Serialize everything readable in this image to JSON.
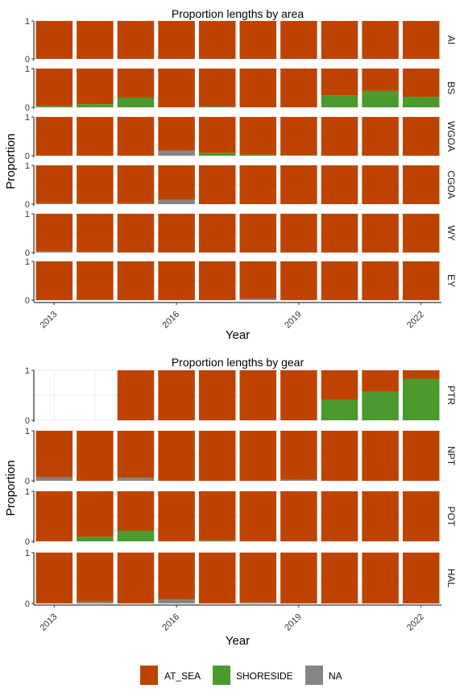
{
  "colors": {
    "AT_SEA": "#BF4300",
    "SHORESIDE": "#4A9A2E",
    "NA": "#858585"
  },
  "legend": {
    "entries": [
      "AT_SEA",
      "SHORESIDE",
      "NA"
    ],
    "placement": "bottom"
  },
  "chart_data": [
    {
      "type": "bar",
      "stacked": true,
      "title": "Proportion lengths by area",
      "xlabel": "Year",
      "ylabel": "Proportion",
      "x": [
        2013,
        2014,
        2015,
        2016,
        2017,
        2018,
        2019,
        2020,
        2021,
        2022
      ],
      "x_ticks": [
        2013,
        2016,
        2019,
        2022
      ],
      "y_ticks": [
        0,
        1
      ],
      "ylim": [
        0,
        1
      ],
      "stack_order": [
        "NA",
        "SHORESIDE",
        "AT_SEA"
      ],
      "facets": [
        {
          "label": "AI",
          "NA": [
            0,
            0,
            0,
            0,
            0,
            0,
            0,
            0,
            0,
            0
          ],
          "SHORESIDE": [
            0,
            0,
            0,
            0,
            0,
            0,
            0,
            0,
            0,
            0
          ],
          "AT_SEA": [
            1,
            1,
            1,
            1,
            1,
            1,
            1,
            1,
            1,
            1
          ]
        },
        {
          "label": "BS",
          "NA": [
            0,
            0,
            0,
            0,
            0,
            0,
            0,
            0,
            0,
            0
          ],
          "SHORESIDE": [
            0.04,
            0.08,
            0.25,
            0,
            0.02,
            0,
            0,
            0.31,
            0.42,
            0.27
          ],
          "AT_SEA": [
            0.96,
            0.92,
            0.75,
            1,
            0.98,
            1,
            1,
            0.69,
            0.58,
            0.73
          ]
        },
        {
          "label": "WGOA",
          "NA": [
            0,
            0,
            0,
            0.13,
            0,
            0,
            0,
            0,
            0,
            0
          ],
          "SHORESIDE": [
            0,
            0,
            0,
            0,
            0.07,
            0.03,
            0.02,
            0,
            0,
            0
          ],
          "AT_SEA": [
            1,
            1,
            1,
            0.87,
            0.93,
            0.97,
            0.98,
            1,
            1,
            1
          ]
        },
        {
          "label": "CGOA",
          "NA": [
            0.02,
            0.02,
            0.02,
            0.11,
            0,
            0,
            0,
            0,
            0,
            0
          ],
          "SHORESIDE": [
            0,
            0,
            0,
            0,
            0,
            0,
            0,
            0,
            0,
            0
          ],
          "AT_SEA": [
            0.98,
            0.98,
            0.98,
            0.89,
            1,
            1,
            1,
            1,
            1,
            1
          ]
        },
        {
          "label": "WY",
          "NA": [
            0.03,
            0.02,
            0,
            0,
            0,
            0,
            0,
            0,
            0,
            0
          ],
          "SHORESIDE": [
            0,
            0,
            0,
            0,
            0,
            0,
            0,
            0,
            0,
            0
          ],
          "AT_SEA": [
            0.97,
            0.98,
            1,
            1,
            1,
            1,
            1,
            1,
            1,
            1
          ]
        },
        {
          "label": "EY",
          "NA": [
            0,
            0.01,
            0,
            0,
            0,
            0.04,
            0,
            0,
            0,
            0
          ],
          "SHORESIDE": [
            0,
            0,
            0,
            0,
            0,
            0,
            0,
            0,
            0,
            0
          ],
          "AT_SEA": [
            1,
            0.99,
            1,
            1,
            1,
            0.96,
            1,
            1,
            1,
            1
          ]
        }
      ]
    },
    {
      "type": "bar",
      "stacked": true,
      "title": "Proportion lengths by gear",
      "xlabel": "Year",
      "ylabel": "Proportion",
      "x": [
        2013,
        2014,
        2015,
        2016,
        2017,
        2018,
        2019,
        2020,
        2021,
        2022
      ],
      "x_ticks": [
        2013,
        2016,
        2019,
        2022
      ],
      "y_ticks": [
        0,
        1
      ],
      "ylim": [
        0,
        1
      ],
      "stack_order": [
        "NA",
        "SHORESIDE",
        "AT_SEA"
      ],
      "facets": [
        {
          "label": "PTR",
          "NA": [
            null,
            null,
            0,
            0,
            0,
            0,
            0,
            0,
            0,
            0
          ],
          "SHORESIDE": [
            null,
            null,
            0,
            0,
            0,
            0,
            0,
            0.41,
            0.57,
            0.83
          ],
          "AT_SEA": [
            null,
            null,
            1,
            1,
            1,
            1,
            1,
            0.59,
            0.43,
            0.17
          ]
        },
        {
          "label": "NPT",
          "NA": [
            0.07,
            0,
            0.06,
            0,
            0,
            0,
            0.02,
            0,
            0,
            0
          ],
          "SHORESIDE": [
            0,
            0,
            0,
            0,
            0,
            0,
            0,
            0,
            0,
            0
          ],
          "AT_SEA": [
            0.93,
            1,
            0.94,
            1,
            1,
            1,
            0.98,
            1,
            1,
            1
          ]
        },
        {
          "label": "POT",
          "NA": [
            0,
            0,
            0,
            0,
            0,
            0,
            0,
            0,
            0,
            0
          ],
          "SHORESIDE": [
            0,
            0.09,
            0.21,
            0,
            0.02,
            0,
            0,
            0,
            0,
            0
          ],
          "AT_SEA": [
            1,
            0.91,
            0.79,
            1,
            0.98,
            1,
            1,
            1,
            1,
            1
          ]
        },
        {
          "label": "HAL",
          "NA": [
            0,
            0.04,
            0,
            0.08,
            0,
            0.02,
            0,
            0,
            0,
            0
          ],
          "SHORESIDE": [
            0,
            0,
            0,
            0,
            0,
            0,
            0,
            0,
            0,
            0
          ],
          "AT_SEA": [
            1,
            0.96,
            1,
            0.92,
            1,
            0.98,
            1,
            1,
            1,
            1
          ]
        }
      ]
    }
  ]
}
